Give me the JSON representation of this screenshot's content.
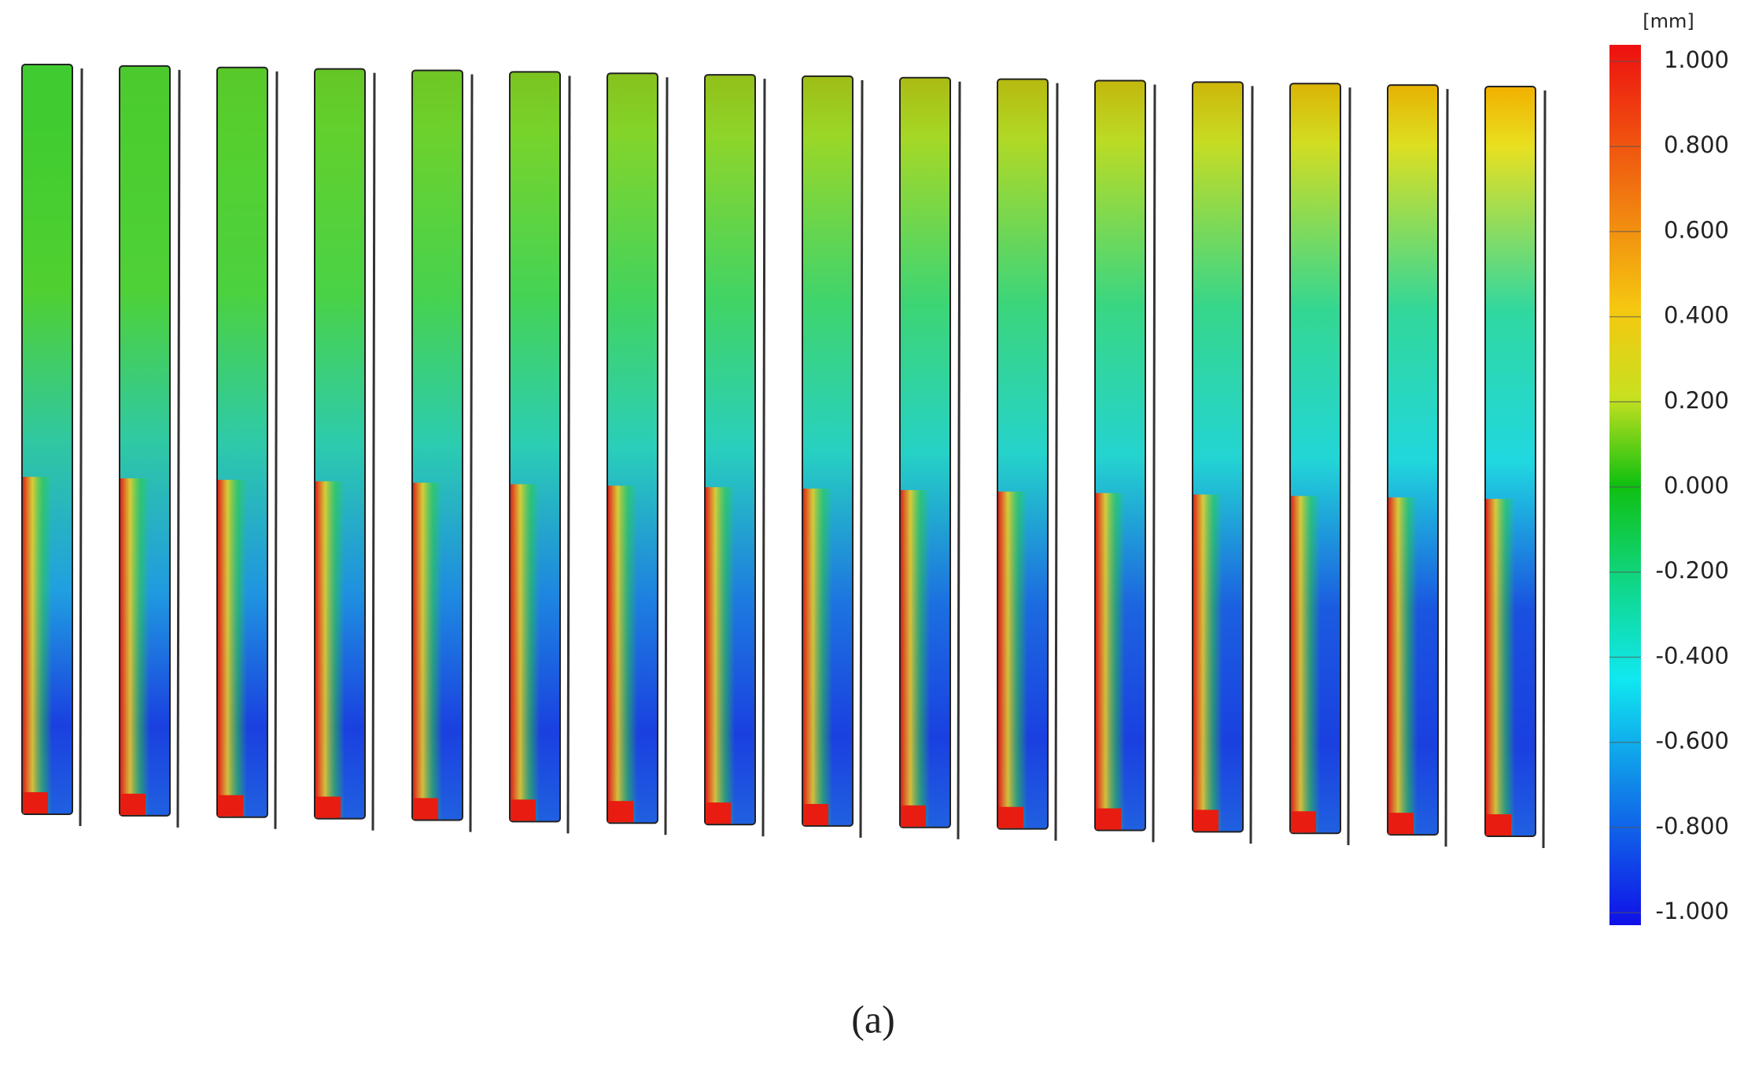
{
  "colorbar": {
    "unit": "[mm]",
    "lim": [
      -1,
      1
    ],
    "ticks": [
      {
        "value": 1,
        "label": "1.000"
      },
      {
        "value": 0.8,
        "label": "0.800"
      },
      {
        "value": 0.6,
        "label": "0.600"
      },
      {
        "value": 0.4,
        "label": "0.400"
      },
      {
        "value": 0.2,
        "label": "0.200"
      },
      {
        "value": 0,
        "label": "0.000"
      },
      {
        "value": -0.2,
        "label": "-0.200"
      },
      {
        "value": -0.4,
        "label": "-0.400"
      },
      {
        "value": -0.6,
        "label": "-0.600"
      },
      {
        "value": -0.8,
        "label": "-0.800"
      },
      {
        "value": -1,
        "label": "-1.000"
      }
    ]
  },
  "caption": "(a)"
}
